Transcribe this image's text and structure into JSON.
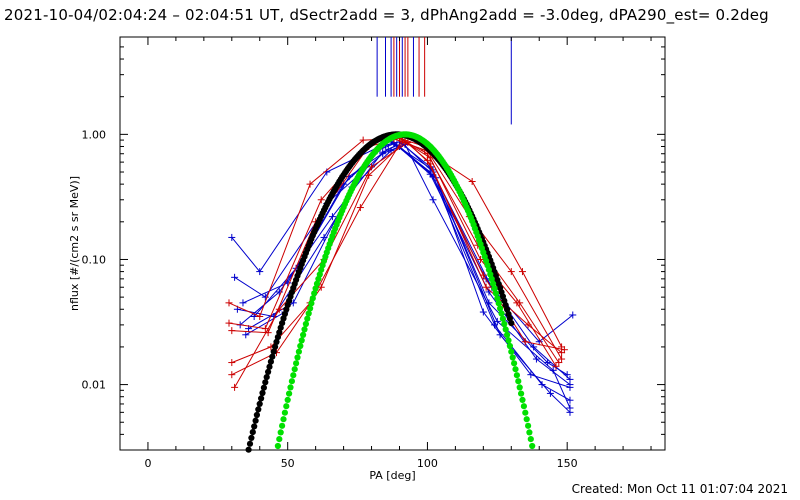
{
  "header": {
    "title": "2021-10-04/02:04:24 – 02:04:51 UT, dSectr2add = 3, dPhAng2add = -3.0deg, dPA290_est=  0.2deg"
  },
  "footer": {
    "created": "Created: Mon Oct 11 01:07:04 2021"
  },
  "chart_data": {
    "type": "scatter",
    "title": "2021-10-04/02:04:24 – 02:04:51 UT, dSectr2add = 3, dPhAng2add = -3.0deg, dPA290_est=  0.2deg",
    "xlabel": "PA [deg]",
    "ylabel": "nflux [#/(cm2 s sr MeV)]",
    "xlim": [
      -10,
      185
    ],
    "ylim": [
      0.003,
      6
    ],
    "yscale": "log",
    "xticks": [
      0,
      50,
      100,
      150
    ],
    "xtick_labels": [
      "0",
      "50",
      "100",
      "150"
    ],
    "yticks": [
      0.01,
      0.1,
      1.0
    ],
    "ytick_labels": [
      "0.01",
      "0.10",
      "1.00"
    ],
    "grid": false,
    "colors": {
      "red": "#cc0000",
      "blue": "#0000cc",
      "black": "#000000",
      "green": "#00e000"
    },
    "vertical_lines": {
      "x": [
        82,
        85,
        87,
        88,
        89,
        90,
        91,
        92,
        93,
        95,
        97,
        99,
        130
      ],
      "colors": [
        "#0000cc",
        "#0000cc",
        "#0000cc",
        "#cc0000",
        "#0000cc",
        "#cc0000",
        "#0000cc",
        "#cc0000",
        "#cc0000",
        "#0000cc",
        "#cc0000",
        "#cc0000",
        "#0000cc"
      ],
      "y_bottom": [
        2.0,
        2.0,
        2.0,
        2.0,
        2.0,
        2.0,
        2.0,
        2.0,
        2.0,
        2.0,
        2.0,
        2.0,
        1.2
      ]
    },
    "fits": [
      {
        "color": "#000000",
        "center": 89,
        "width": 22,
        "x_range": [
          24,
          130
        ]
      },
      {
        "color": "#00e000",
        "center": 92,
        "width": 19,
        "x_range": [
          33,
          151
        ]
      }
    ],
    "series": [
      {
        "color": "#0000cc",
        "x": [
          30,
          40,
          64,
          83,
          87,
          101,
          121,
          138,
          151
        ],
        "y": [
          0.15,
          0.08,
          0.5,
          0.8,
          0.88,
          0.5,
          0.07,
          0.02,
          0.011
        ]
      },
      {
        "color": "#0000cc",
        "x": [
          31,
          42,
          68,
          83,
          88,
          101,
          122,
          139,
          151
        ],
        "y": [
          0.072,
          0.05,
          0.36,
          0.78,
          0.86,
          0.48,
          0.055,
          0.016,
          0.01
        ]
      },
      {
        "color": "#0000cc",
        "x": [
          32,
          45,
          63,
          82,
          88,
          102,
          120,
          137,
          151
        ],
        "y": [
          0.04,
          0.035,
          0.15,
          0.74,
          0.84,
          0.52,
          0.038,
          0.012,
          0.0095
        ]
      },
      {
        "color": "#0000cc",
        "x": [
          33,
          47,
          66,
          84,
          89,
          102,
          124,
          141,
          151
        ],
        "y": [
          0.03,
          0.055,
          0.22,
          0.72,
          0.82,
          0.46,
          0.03,
          0.01,
          0.0075
        ]
      },
      {
        "color": "#0000cc",
        "x": [
          35,
          49,
          64,
          84,
          90,
          103,
          126,
          144,
          151
        ],
        "y": [
          0.025,
          0.038,
          0.28,
          0.7,
          0.8,
          0.45,
          0.025,
          0.0085,
          0.006
        ]
      },
      {
        "color": "#0000cc",
        "x": [
          34,
          50,
          70,
          85,
          90,
          101,
          123,
          140,
          152
        ],
        "y": [
          0.045,
          0.065,
          0.4,
          0.82,
          0.87,
          0.55,
          0.06,
          0.022,
          0.036
        ]
      },
      {
        "color": "#0000cc",
        "x": [
          38,
          53,
          72,
          86,
          91,
          102,
          122,
          143,
          150
        ],
        "y": [
          0.035,
          0.085,
          0.46,
          0.76,
          0.85,
          0.5,
          0.045,
          0.015,
          0.012
        ]
      },
      {
        "color": "#0000cc",
        "x": [
          36,
          52,
          73,
          87,
          92,
          102,
          125,
          145,
          151
        ],
        "y": [
          0.028,
          0.045,
          0.38,
          0.74,
          0.83,
          0.3,
          0.032,
          0.013,
          0.0065
        ]
      },
      {
        "color": "#cc0000",
        "x": [
          29,
          40,
          58,
          77,
          88,
          99,
          116,
          134,
          148
        ],
        "y": [
          0.045,
          0.035,
          0.4,
          0.9,
          0.92,
          0.75,
          0.42,
          0.08,
          0.02
        ]
      },
      {
        "color": "#cc0000",
        "x": [
          29,
          42,
          62,
          80,
          89,
          99,
          115,
          130,
          148
        ],
        "y": [
          0.031,
          0.028,
          0.3,
          0.85,
          0.95,
          0.8,
          0.22,
          0.08,
          0.016
        ]
      },
      {
        "color": "#cc0000",
        "x": [
          30,
          43,
          60,
          79,
          90,
          100,
          118,
          133,
          147
        ],
        "y": [
          0.027,
          0.026,
          0.2,
          0.8,
          0.93,
          0.7,
          0.13,
          0.045,
          0.015
        ]
      },
      {
        "color": "#cc0000",
        "x": [
          30,
          44,
          58,
          76,
          91,
          101,
          119,
          132,
          146
        ],
        "y": [
          0.015,
          0.02,
          0.045,
          0.26,
          0.9,
          0.65,
          0.1,
          0.045,
          0.014
        ]
      },
      {
        "color": "#cc0000",
        "x": [
          30,
          46,
          62,
          79,
          92,
          100,
          120,
          135,
          149
        ],
        "y": [
          0.012,
          0.018,
          0.06,
          0.47,
          0.88,
          0.62,
          0.075,
          0.022,
          0.019
        ]
      },
      {
        "color": "#cc0000",
        "x": [
          31,
          47,
          63,
          80,
          93,
          101,
          121,
          136,
          148
        ],
        "y": [
          0.0095,
          0.04,
          0.1,
          0.55,
          0.86,
          0.58,
          0.06,
          0.03,
          0.018
        ]
      }
    ]
  }
}
